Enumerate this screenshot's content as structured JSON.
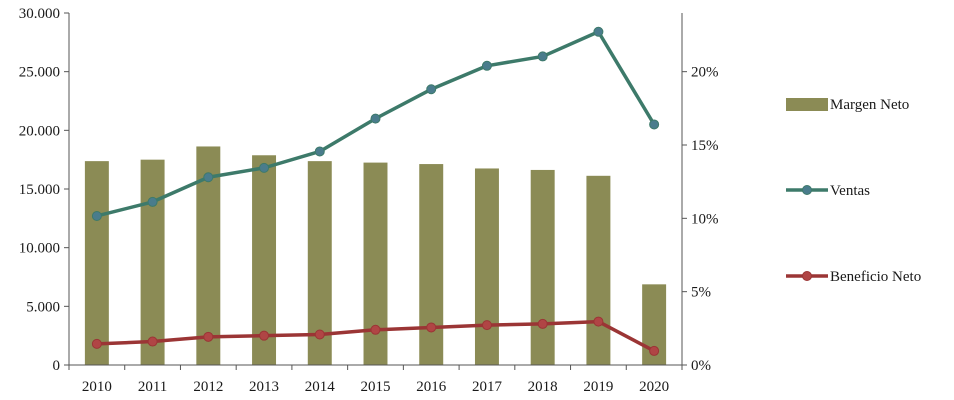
{
  "chart_data": {
    "type": "bar",
    "categories": [
      "2010",
      "2011",
      "2012",
      "2013",
      "2014",
      "2015",
      "2016",
      "2017",
      "2018",
      "2019",
      "2020"
    ],
    "left_axis": {
      "ylim": [
        0,
        30000
      ],
      "ticks": [
        0,
        5000,
        10000,
        15000,
        20000,
        25000,
        30000
      ],
      "tick_labels": [
        "0",
        "5.000",
        "10.000",
        "15.000",
        "20.000",
        "25.000",
        "30.000"
      ]
    },
    "right_axis": {
      "ylim": [
        0,
        0.24
      ],
      "ticks": [
        0,
        0.05,
        0.1,
        0.15,
        0.2
      ],
      "tick_labels": [
        "0%",
        "5%",
        "10%",
        "15%",
        "20%"
      ]
    },
    "grid": false,
    "legend_position": "right",
    "series": [
      {
        "name": "Margen Neto",
        "kind": "bar",
        "axis": "right",
        "color": "#8B8B55",
        "values": [
          0.139,
          0.14,
          0.149,
          0.143,
          0.139,
          0.138,
          0.137,
          0.134,
          0.133,
          0.129,
          0.055
        ]
      },
      {
        "name": "Ventas",
        "kind": "line",
        "axis": "left",
        "color": "#3D7A6A",
        "marker_color": "#4A7C8C",
        "values": [
          12700,
          13900,
          16000,
          16800,
          18200,
          21000,
          23500,
          25500,
          26300,
          28400,
          20500
        ]
      },
      {
        "name": "Beneficio Neto",
        "kind": "line",
        "axis": "left",
        "color": "#9B3535",
        "marker_color": "#B04545",
        "values": [
          1800,
          2000,
          2400,
          2500,
          2600,
          3000,
          3200,
          3400,
          3500,
          3700,
          1200
        ]
      }
    ]
  }
}
